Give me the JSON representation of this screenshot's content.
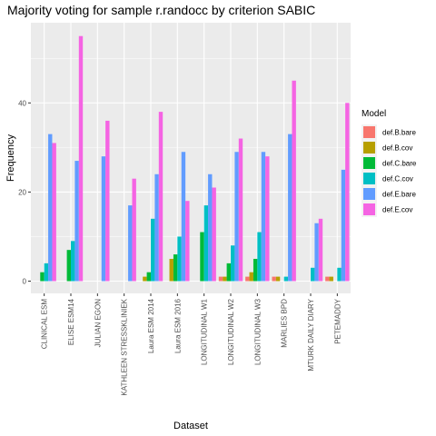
{
  "chart_data": {
    "type": "bar",
    "title": "Majority voting for sample r.randocc by criterion SABIC",
    "xlabel": "Dataset",
    "ylabel": "Frequency",
    "ylim": [
      -2.75,
      58
    ],
    "yticks": [
      0,
      20,
      40
    ],
    "grid": true,
    "legend_position": "right",
    "legend_title": "Model",
    "categories": [
      "CLINICAL ESM",
      "ELISE ESM14",
      "JULIAN EGON",
      "KATHLEEN STRESSKLINIEK",
      "Laura ESM 2014",
      "Laura ESM 2016",
      "LONGITUDINAL W1",
      "LONGITUDINAL W2",
      "LONGITUDINAL W3",
      "MARLIES BPD",
      "MTURK DAILY DIARY",
      "PETEMADDY"
    ],
    "series": [
      {
        "name": "def.B.bare",
        "color": "#F8766D",
        "values": [
          null,
          null,
          null,
          null,
          null,
          null,
          null,
          1,
          1,
          1,
          null,
          1
        ]
      },
      {
        "name": "def.B.cov",
        "color": "#B79F00",
        "values": [
          null,
          null,
          null,
          null,
          1,
          5,
          null,
          1,
          2,
          1,
          null,
          1
        ]
      },
      {
        "name": "def.C.bare",
        "color": "#00BA38",
        "values": [
          2,
          7,
          null,
          null,
          2,
          6,
          11,
          4,
          5,
          null,
          null,
          null
        ]
      },
      {
        "name": "def.C.cov",
        "color": "#00BFC4",
        "values": [
          4,
          9,
          null,
          null,
          14,
          10,
          17,
          8,
          11,
          1,
          3,
          3
        ]
      },
      {
        "name": "def.E.bare",
        "color": "#619CFF",
        "values": [
          33,
          27,
          28,
          17,
          24,
          29,
          24,
          29,
          29,
          33,
          13,
          25
        ]
      },
      {
        "name": "def.E.cov",
        "color": "#F564E3",
        "values": [
          31,
          55,
          36,
          23,
          38,
          18,
          21,
          32,
          28,
          45,
          14,
          40
        ]
      }
    ]
  }
}
